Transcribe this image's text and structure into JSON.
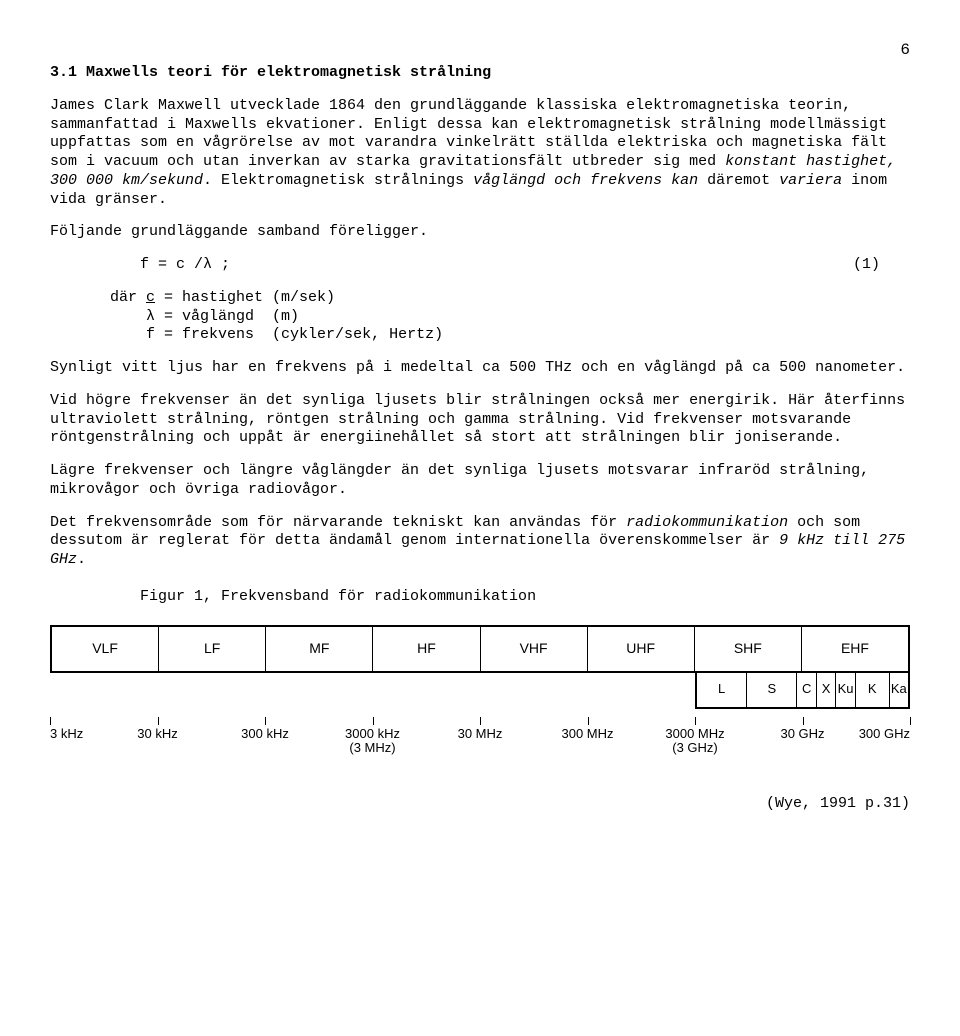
{
  "page_number": "6",
  "heading": "3.1 Maxwells teori för elektromagnetisk strålning",
  "para1_a": "James Clark Maxwell utvecklade 1864 den grundläggande klassiska elektromagnetiska teorin, sammanfattad i Maxwells ekvationer. Enligt dessa kan elektromagnetisk strålning modellmässigt uppfattas som en vågrörelse av mot varandra vinkelrätt ställda elektriska och magnetiska fält som i vacuum och utan inverkan av starka gravitationsfält utbreder sig med ",
  "para1_b": "konstant hastighet, 300 000 km/sekund",
  "para1_c": ". Elektromagnetisk strålnings ",
  "para1_d": "våglängd och frekvens kan",
  "para1_e": " däremot ",
  "para1_f": "variera",
  "para1_g": " inom vida gränser.",
  "para2": "Följande grundläggande samband föreligger.",
  "formula": "f = c /λ    ;",
  "formula_num": "(1)",
  "def_intro": "där ",
  "defs": [
    {
      "sym": "c",
      "eq": " = hastighet (m/sek)"
    },
    {
      "sym": "λ",
      "eq": " = våglängd  (m)"
    },
    {
      "sym": "f",
      "eq": " = frekvens  (cykler/sek, Hertz)"
    }
  ],
  "para3": "Synligt vitt ljus har en frekvens på i medeltal ca 500 THz och en våglängd på ca 500 nanometer.",
  "para4": "Vid högre frekvenser än det synliga ljusets blir strålningen också mer energirik. Här återfinns  ultraviolett strålning, röntgen strålning och gamma strålning. Vid frekvenser motsvarande röntgenstrålning och uppåt är energiinehållet så stort att strålningen blir joniserande.",
  "para5": "Lägre frekvenser och längre våglängder än det synliga ljusets motsvarar infraröd strålning, mikrovågor och övriga radiovågor.",
  "para6_a": "Det frekvensområde som för närvarande tekniskt kan användas för ",
  "para6_b": "radiokommunikation",
  "para6_c": " och som dessutom är reglerat för detta ändamål genom internationella överenskommelser är ",
  "para6_d": "9 kHz till 275 GHz",
  "para6_e": ".",
  "figure_caption": "Figur 1, Frekvensband för radiokommunikation",
  "bands": [
    "VLF",
    "LF",
    "MF",
    "HF",
    "VHF",
    "UHF",
    "SHF",
    "EHF"
  ],
  "sub_bands": [
    {
      "label": "L",
      "flex": 24
    },
    {
      "label": "S",
      "flex": 24
    },
    {
      "label": "C",
      "flex": 9
    },
    {
      "label": "X",
      "flex": 9
    },
    {
      "label": "Ku",
      "flex": 9
    },
    {
      "label": "K",
      "flex": 16
    },
    {
      "label": "Ka",
      "flex": 9
    }
  ],
  "ticks": [
    {
      "pos": 0,
      "label": "3 kHz",
      "sub": ""
    },
    {
      "pos": 12.5,
      "label": "30 kHz",
      "sub": ""
    },
    {
      "pos": 25,
      "label": "300 kHz",
      "sub": ""
    },
    {
      "pos": 37.5,
      "label": "3000 kHz",
      "sub": "(3 MHz)"
    },
    {
      "pos": 50,
      "label": "30 MHz",
      "sub": ""
    },
    {
      "pos": 62.5,
      "label": "300 MHz",
      "sub": ""
    },
    {
      "pos": 75,
      "label": "3000 MHz",
      "sub": "(3 GHz)"
    },
    {
      "pos": 87.5,
      "label": "30 GHz",
      "sub": ""
    },
    {
      "pos": 100,
      "label": "300 GHz",
      "sub": ""
    }
  ],
  "citation": "(Wye, 1991 p.31)",
  "colors": {
    "text": "#000000",
    "background": "#ffffff",
    "border": "#000000"
  }
}
